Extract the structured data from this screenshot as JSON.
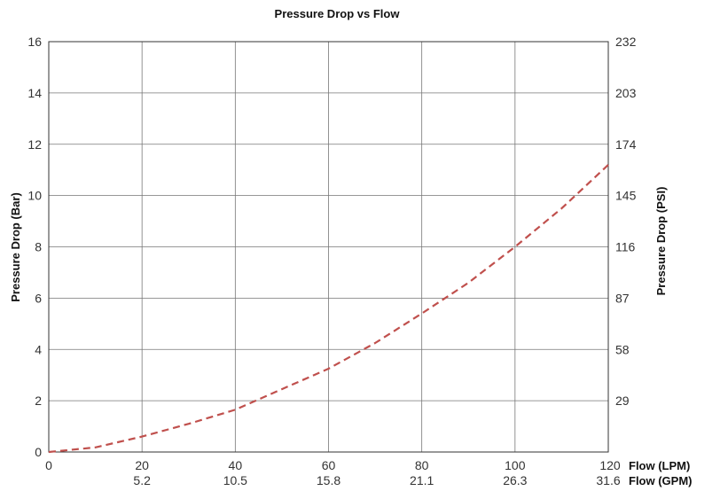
{
  "chart_data": {
    "type": "line",
    "title": "Pressure Drop vs Flow",
    "ylabel_left": "Pressure Drop (Bar)",
    "ylabel_right": "Pressure Drop (PSI)",
    "xlabel_primary": "Flow (LPM)",
    "xlabel_secondary": "Flow (GPM)",
    "xlim": [
      0,
      120
    ],
    "ylim": [
      0,
      16
    ],
    "x_ticks": [
      "0",
      "20",
      "40",
      "60",
      "80",
      "100",
      "120"
    ],
    "x_ticks_secondary": [
      "",
      "5.2",
      "10.5",
      "15.8",
      "21.1",
      "26.3",
      "31.6"
    ],
    "y_ticks_left": [
      "0",
      "2",
      "4",
      "6",
      "8",
      "10",
      "12",
      "14",
      "16"
    ],
    "y_ticks_right": [
      "",
      "29",
      "58",
      "87",
      "116",
      "145",
      "174",
      "203",
      "232"
    ],
    "grid": true,
    "series": [
      {
        "color": "#c0504d",
        "dash": true,
        "x": [
          0,
          10,
          20,
          30,
          40,
          50,
          60,
          70,
          80,
          90,
          100,
          110,
          120
        ],
        "y": [
          0,
          0.18,
          0.6,
          1.1,
          1.65,
          2.45,
          3.25,
          4.25,
          5.4,
          6.6,
          8.0,
          9.5,
          11.2
        ]
      }
    ]
  }
}
